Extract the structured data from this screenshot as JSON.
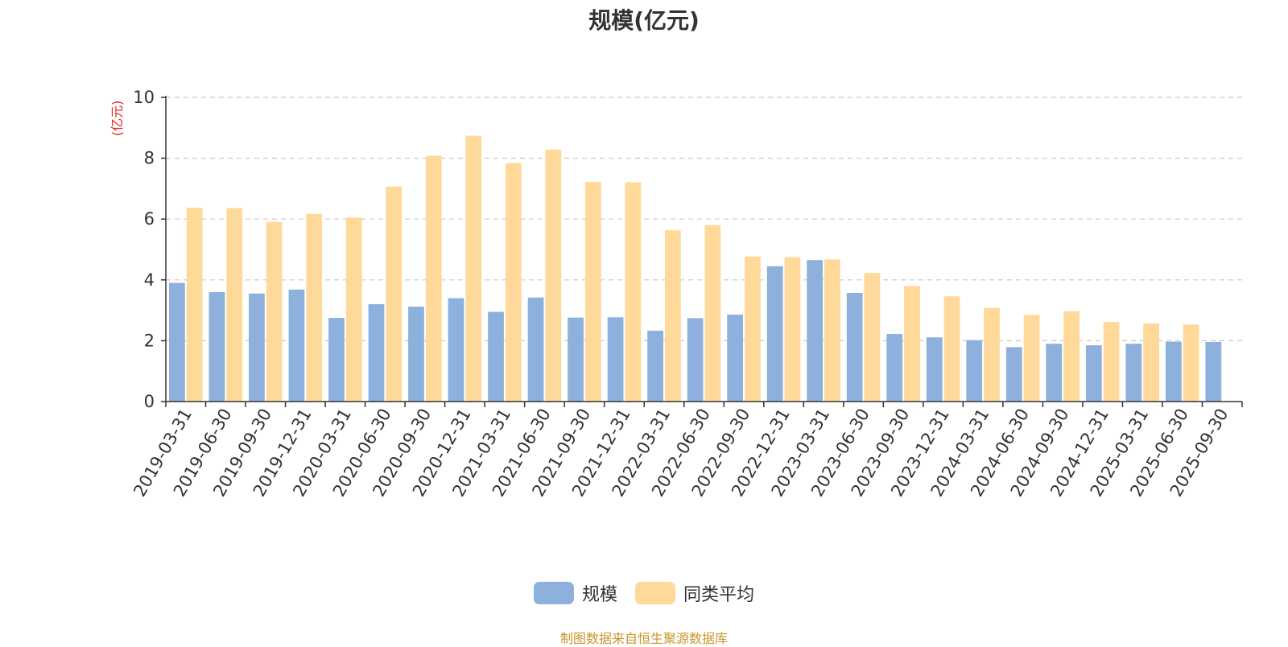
{
  "chart_data": {
    "type": "bar",
    "title": "规模(亿元)",
    "ylabel": "(亿元)",
    "xlabel": "",
    "ylim": [
      0,
      10
    ],
    "yticks": [
      0,
      2,
      4,
      6,
      8,
      10
    ],
    "grid": true,
    "legend_position": "bottom-center",
    "categories": [
      "2019-03-31",
      "2019-06-30",
      "2019-09-30",
      "2019-12-31",
      "2020-03-31",
      "2020-06-30",
      "2020-09-30",
      "2020-12-31",
      "2021-03-31",
      "2021-06-30",
      "2021-09-30",
      "2021-12-31",
      "2022-03-31",
      "2022-06-30",
      "2022-09-30",
      "2022-12-31",
      "2023-03-31",
      "2023-06-30",
      "2023-09-30",
      "2023-12-31",
      "2024-03-31",
      "2024-06-30",
      "2024-09-30",
      "2024-12-31",
      "2025-03-31",
      "2025-06-30",
      "2025-09-30"
    ],
    "series": [
      {
        "name": "规模",
        "color": "#8eb0dc",
        "values": [
          3.9,
          3.6,
          3.55,
          3.68,
          2.75,
          3.2,
          3.12,
          3.4,
          2.95,
          3.42,
          2.76,
          2.77,
          2.33,
          2.74,
          2.86,
          4.45,
          4.65,
          3.57,
          2.22,
          2.11,
          2.02,
          1.79,
          1.9,
          1.85,
          1.9,
          1.97,
          1.96
        ]
      },
      {
        "name": "同类平均",
        "color": "#fed999",
        "values": [
          6.37,
          6.36,
          5.9,
          6.17,
          6.05,
          7.07,
          8.08,
          8.74,
          7.84,
          8.28,
          7.22,
          7.21,
          5.63,
          5.8,
          4.77,
          4.75,
          4.67,
          4.23,
          3.8,
          3.46,
          3.08,
          2.85,
          2.97,
          2.62,
          2.57,
          2.53,
          null
        ]
      }
    ]
  },
  "legend": {
    "items": [
      "规模",
      "同类平均"
    ]
  },
  "source_note": "制图数据来自恒生聚源数据库",
  "colors": {
    "axis": "#333333",
    "grid": "#c8c8c8",
    "ylabel": "#e8231f",
    "text": "#333333",
    "source": "#c8962c"
  }
}
